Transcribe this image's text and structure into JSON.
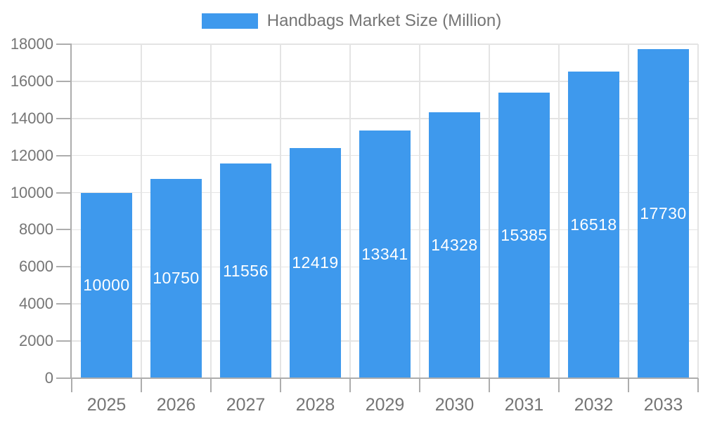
{
  "chart_data": {
    "type": "bar",
    "title": "Handbags Market Size (Million)",
    "legend": {
      "label": "Handbags Market Size (Million)",
      "position": "top"
    },
    "categories": [
      "2025",
      "2026",
      "2027",
      "2028",
      "2029",
      "2030",
      "2031",
      "2032",
      "2033"
    ],
    "values": [
      10000,
      10750,
      11556,
      12419,
      13341,
      14328,
      15385,
      16518,
      17730
    ],
    "xlabel": "",
    "ylabel": "",
    "ylim": [
      0,
      18000
    ],
    "yticks": [
      0,
      2000,
      4000,
      6000,
      8000,
      10000,
      12000,
      14000,
      16000,
      18000
    ],
    "grid": true,
    "colors": {
      "bar": "#3E99ED",
      "bar_label": "#FFFFFF",
      "axis_text": "#757575",
      "gridline": "#E4E4E4",
      "axis_line": "#ADADAD"
    }
  }
}
